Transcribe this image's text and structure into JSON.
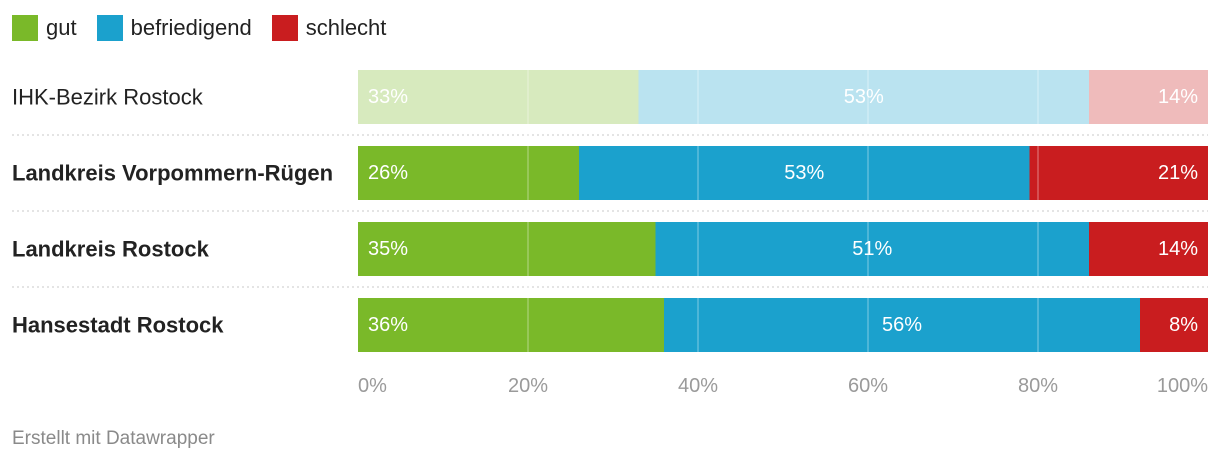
{
  "colors": {
    "gut": "#7ab929",
    "befriedigend": "#1ba1cd",
    "schlecht": "#c91d1f"
  },
  "legend": [
    {
      "key": "gut",
      "label": "gut"
    },
    {
      "key": "befriedigend",
      "label": "befriedigend"
    },
    {
      "key": "schlecht",
      "label": "schlecht"
    }
  ],
  "chart_data": {
    "type": "bar",
    "orientation": "horizontal",
    "stacked": true,
    "percent_stacked": true,
    "series_names": [
      "gut",
      "befriedigend",
      "schlecht"
    ],
    "rows": [
      {
        "label": "IHK-Bezirk Rostock",
        "bold": false,
        "muted": true,
        "values": [
          33,
          53,
          14
        ],
        "labels": [
          "33%",
          "53%",
          "14%"
        ]
      },
      {
        "label": "Landkreis Vorpommern-Rügen",
        "bold": true,
        "muted": false,
        "values": [
          26,
          53,
          21
        ],
        "labels": [
          "26%",
          "53%",
          "21%"
        ]
      },
      {
        "label": "Landkreis Rostock",
        "bold": true,
        "muted": false,
        "values": [
          35,
          51,
          14
        ],
        "labels": [
          "35%",
          "51%",
          "14%"
        ]
      },
      {
        "label": "Hansestadt Rostock",
        "bold": true,
        "muted": false,
        "values": [
          36,
          56,
          8
        ],
        "labels": [
          "36%",
          "56%",
          "8%"
        ]
      }
    ],
    "xlim": [
      0,
      100
    ],
    "x_ticks": [
      0,
      20,
      40,
      60,
      80,
      100
    ],
    "x_tick_labels": [
      "0%",
      "20%",
      "40%",
      "60%",
      "80%",
      "100%"
    ],
    "grid": true
  },
  "footer": {
    "credit": "Erstellt mit Datawrapper"
  }
}
